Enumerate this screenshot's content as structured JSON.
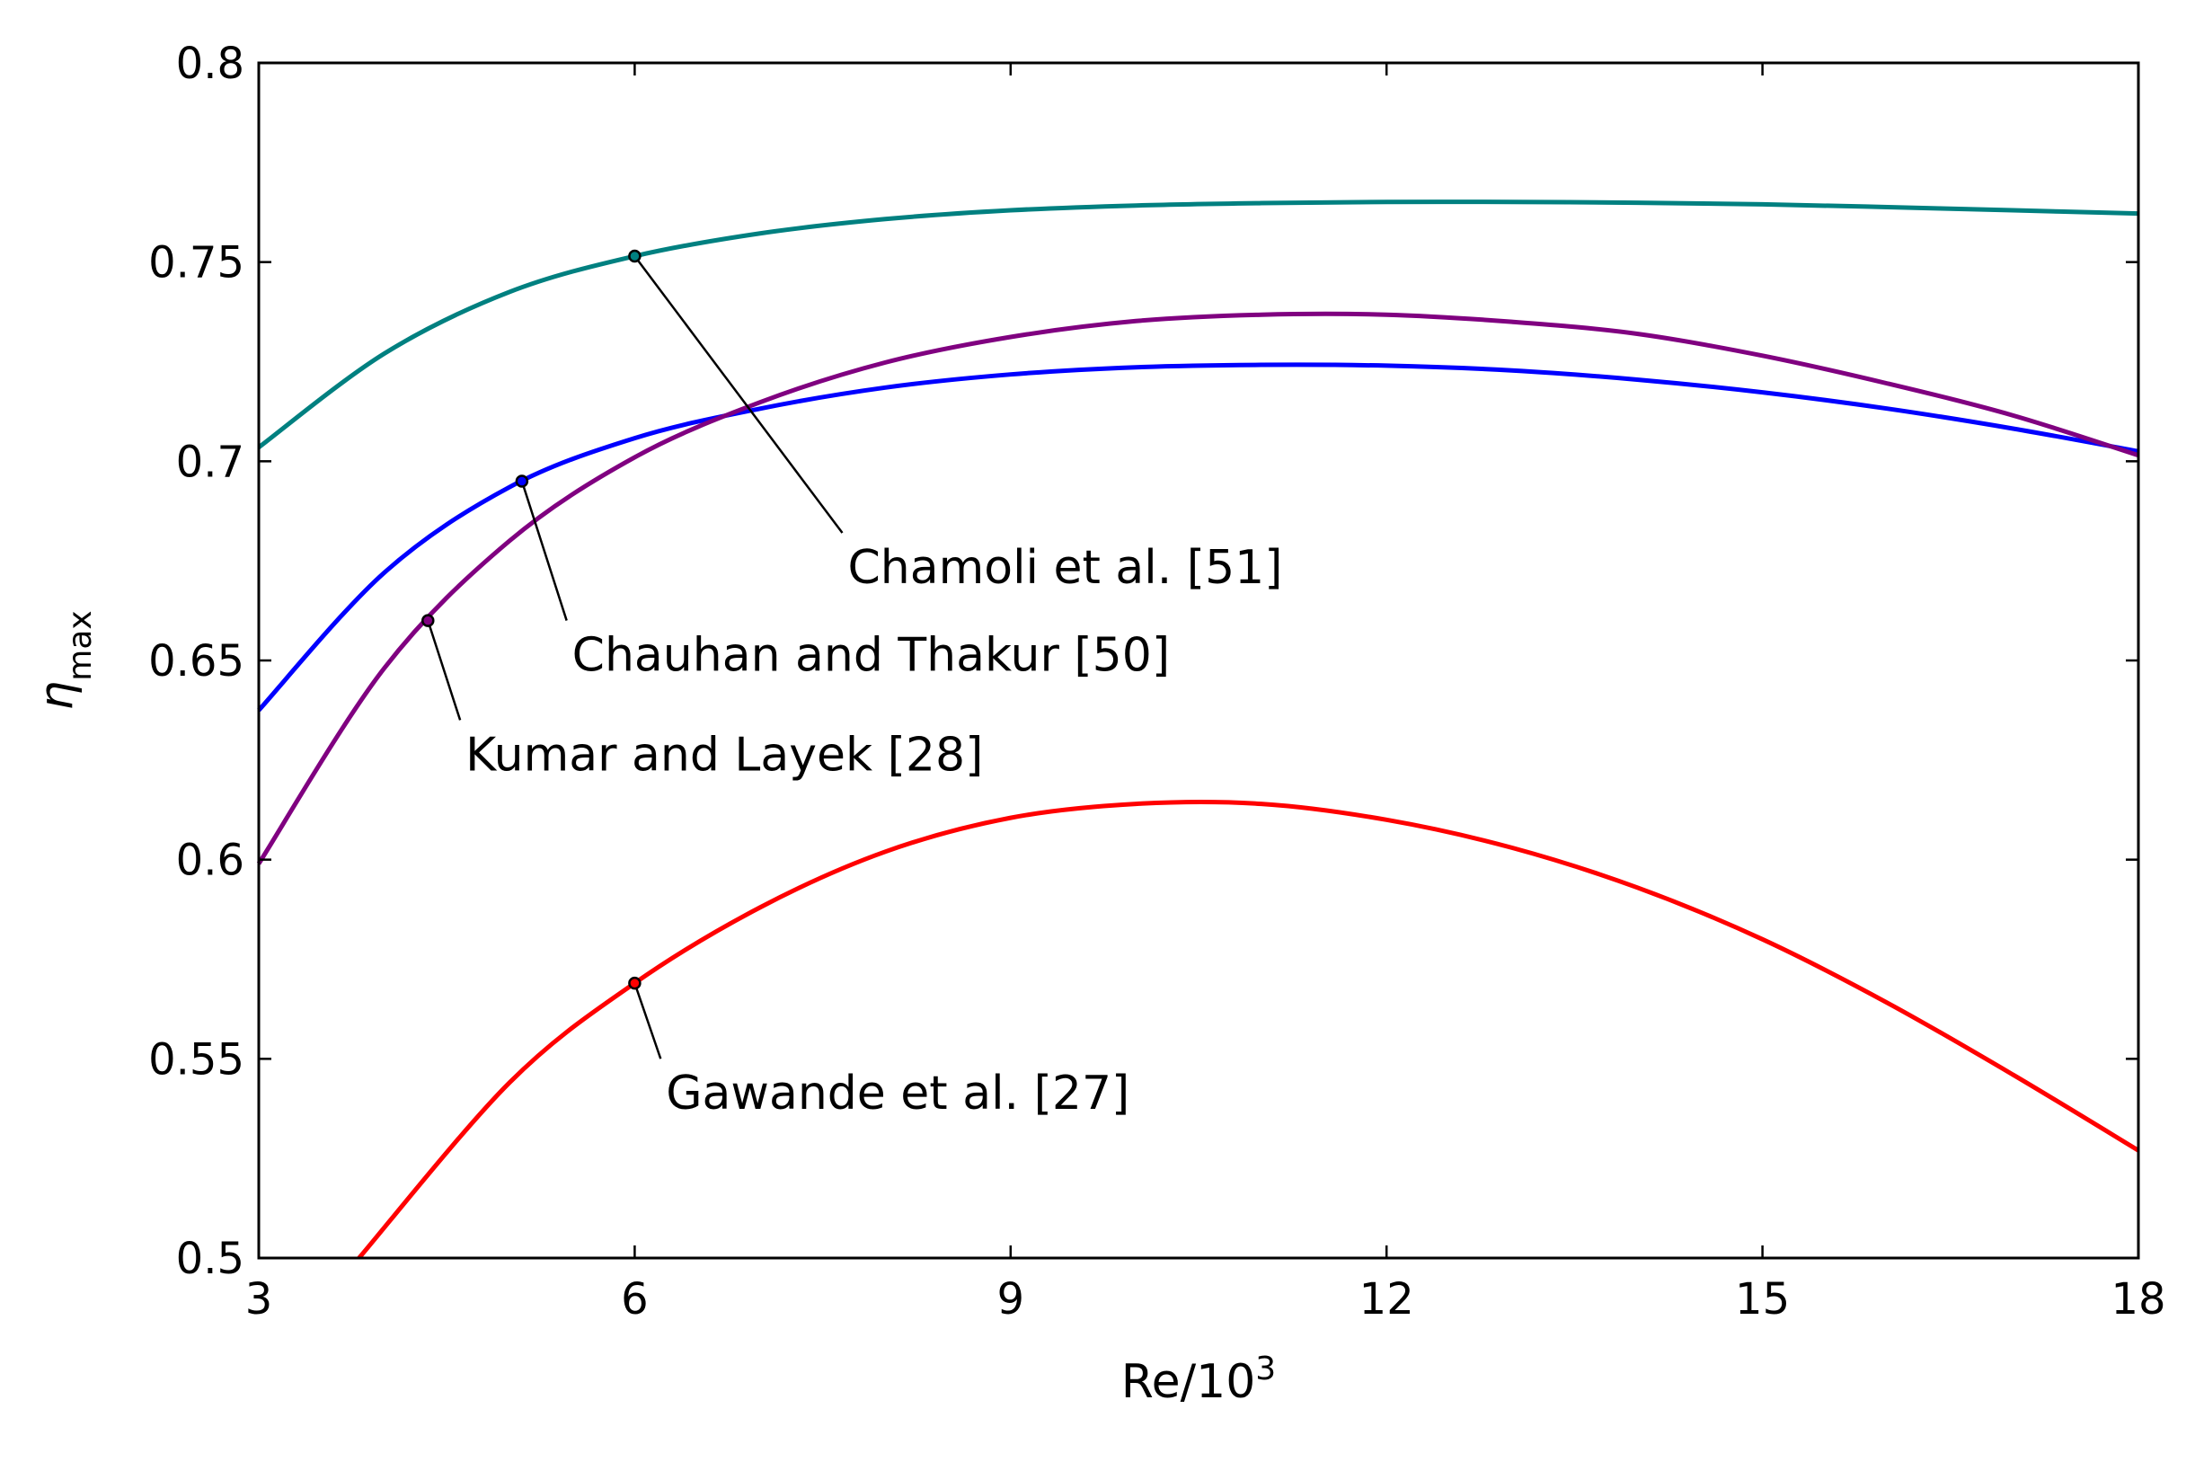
{
  "chart_data": {
    "type": "line",
    "title": "",
    "xlabel": "Re/10",
    "xlabel_sup": "3",
    "ylabel": "η",
    "ylabel_sub": "max",
    "xlim": [
      3,
      18
    ],
    "ylim": [
      0.5,
      0.8
    ],
    "xticks": [
      3,
      6,
      9,
      12,
      15,
      18
    ],
    "yticks": [
      0.5,
      0.55,
      0.6,
      0.65,
      0.7,
      0.75,
      0.8
    ],
    "xtick_labels": [
      "3",
      "6",
      "9",
      "12",
      "15",
      "18"
    ],
    "ytick_labels": [
      "0.5",
      "0.55",
      "0.6",
      "0.65",
      "0.7",
      "0.75",
      "0.8"
    ],
    "grid": false,
    "legend": "none (inline annotations)",
    "series": [
      {
        "name": "Chamoli et al. [51]",
        "color": "#008080",
        "x": [
          3,
          4,
          5,
          6,
          7,
          8,
          9,
          10,
          11,
          12,
          13,
          14,
          15,
          16,
          17,
          18
        ],
        "y": [
          0.7035,
          0.727,
          0.7425,
          0.7515,
          0.7572,
          0.7608,
          0.763,
          0.7642,
          0.7648,
          0.7651,
          0.7651,
          0.7649,
          0.7645,
          0.7638,
          0.763,
          0.7622
        ],
        "marker": {
          "x": 6,
          "y": 0.7515
        },
        "label_anchor": {
          "x": 7.7,
          "y": 0.673
        }
      },
      {
        "name": "Chauhan and Thakur [50]",
        "color": "#0000ff",
        "x": [
          3,
          4,
          5,
          6,
          7,
          8,
          9,
          10,
          11,
          12,
          13,
          14,
          15,
          16,
          17,
          18
        ],
        "y": [
          0.6375,
          0.672,
          0.6935,
          0.7058,
          0.7132,
          0.7185,
          0.7218,
          0.7236,
          0.7242,
          0.724,
          0.7228,
          0.7205,
          0.7173,
          0.7132,
          0.7082,
          0.7025
        ],
        "marker": {
          "x": 5.1,
          "y": 0.695
        },
        "label_anchor": {
          "x": 5.5,
          "y": 0.651
        }
      },
      {
        "name": "Kumar and Layek [28]",
        "color": "#800080",
        "x": [
          3,
          4,
          5,
          6,
          7,
          8,
          9,
          10,
          11,
          12,
          13,
          14,
          15,
          16,
          17,
          18
        ],
        "y": [
          0.599,
          0.648,
          0.68,
          0.701,
          0.7148,
          0.7248,
          0.7312,
          0.7352,
          0.7368,
          0.7368,
          0.735,
          0.732,
          0.7265,
          0.7195,
          0.7115,
          0.7015
        ],
        "marker": {
          "x": 4.35,
          "y": 0.66
        },
        "label_anchor": {
          "x": 4.65,
          "y": 0.626
        }
      },
      {
        "name": "Gawande et al. [27]",
        "color": "#ff0000",
        "x": [
          3.8,
          5,
          6,
          7,
          8,
          9,
          10,
          11,
          12,
          13,
          14,
          15,
          16,
          17,
          18
        ],
        "y": [
          0.5,
          0.544,
          0.569,
          0.588,
          0.602,
          0.6105,
          0.614,
          0.614,
          0.61,
          0.603,
          0.593,
          0.58,
          0.564,
          0.546,
          0.527
        ],
        "marker": {
          "x": 6,
          "y": 0.569
        },
        "label_anchor": {
          "x": 6.25,
          "y": 0.541
        }
      }
    ]
  }
}
